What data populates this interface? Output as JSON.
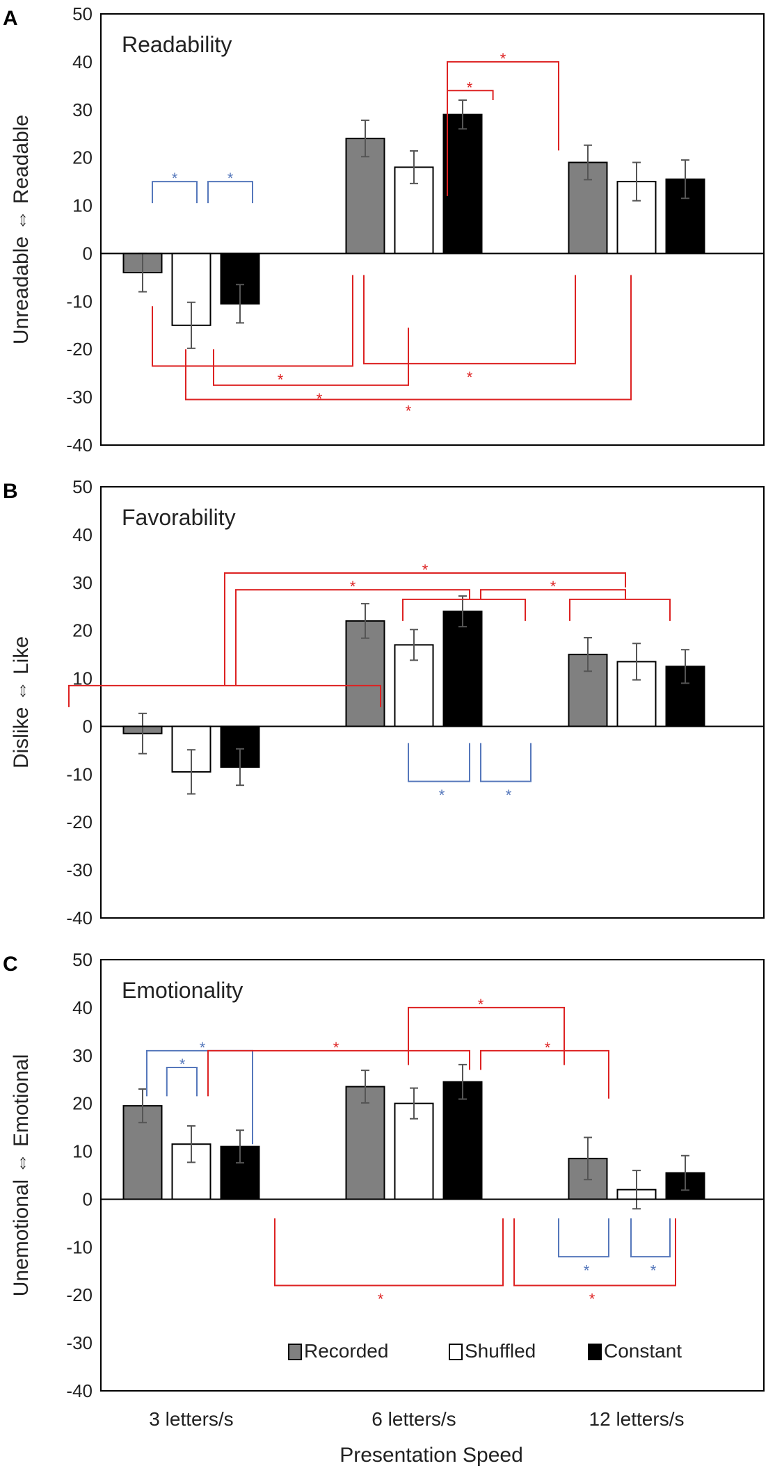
{
  "chart_data": [
    {
      "panel_label": "A",
      "type": "bar",
      "title": "Readability",
      "ylabel": "Unreadable ⇔ Readable",
      "ylim": [
        -40,
        50
      ],
      "yticks": [
        "50",
        "40",
        "30",
        "20",
        "10",
        "0",
        "-10",
        "-20",
        "-30",
        "-40"
      ],
      "categories": [
        "3 letters/s",
        "6 letters/s",
        "12 letters/s"
      ],
      "series": [
        {
          "name": "Recorded",
          "values": [
            -4,
            24,
            19
          ],
          "errors": [
            4,
            3.8,
            3.6
          ],
          "color": "#808080"
        },
        {
          "name": "Shuffled",
          "values": [
            -15,
            18,
            15
          ],
          "errors": [
            4.8,
            3.4,
            4
          ],
          "color": "#ffffff"
        },
        {
          "name": "Constant",
          "values": [
            -10.5,
            29,
            15.5
          ],
          "errors": [
            4,
            3,
            4
          ],
          "color": "#000000"
        }
      ],
      "significance_marker": "*"
    },
    {
      "panel_label": "B",
      "type": "bar",
      "title": "Favorability",
      "ylabel": "Dislike ⇔ Like",
      "ylim": [
        -40,
        50
      ],
      "yticks": [
        "50",
        "40",
        "30",
        "20",
        "10",
        "0",
        "-10",
        "-20",
        "-30",
        "-40"
      ],
      "categories": [
        "3 letters/s",
        "6 letters/s",
        "12 letters/s"
      ],
      "series": [
        {
          "name": "Recorded",
          "values": [
            -1.5,
            22,
            15
          ],
          "errors": [
            4.2,
            3.6,
            3.5
          ],
          "color": "#808080"
        },
        {
          "name": "Shuffled",
          "values": [
            -9.5,
            17,
            13.5
          ],
          "errors": [
            4.6,
            3.2,
            3.8
          ],
          "color": "#ffffff"
        },
        {
          "name": "Constant",
          "values": [
            -8.5,
            24,
            12.5
          ],
          "errors": [
            3.8,
            3.2,
            3.5
          ],
          "color": "#000000"
        }
      ],
      "significance_marker": "*"
    },
    {
      "panel_label": "C",
      "type": "bar",
      "title": "Emotionality",
      "ylabel": "Unemotional ⇔ Emotional",
      "ylim": [
        -40,
        50
      ],
      "yticks": [
        "50",
        "40",
        "30",
        "20",
        "10",
        "0",
        "-10",
        "-20",
        "-30",
        "-40"
      ],
      "categories": [
        "3 letters/s",
        "6 letters/s",
        "12 letters/s"
      ],
      "series": [
        {
          "name": "Recorded",
          "values": [
            19.5,
            23.5,
            8.5
          ],
          "errors": [
            3.5,
            3.4,
            4.4
          ],
          "color": "#808080"
        },
        {
          "name": "Shuffled",
          "values": [
            11.5,
            20,
            2
          ],
          "errors": [
            3.8,
            3.2,
            4
          ],
          "color": "#ffffff"
        },
        {
          "name": "Constant",
          "values": [
            11,
            24.5,
            5.5
          ],
          "errors": [
            3.4,
            3.6,
            3.6
          ],
          "color": "#000000"
        }
      ],
      "significance_marker": "*",
      "legend": {
        "position": "bottom-right",
        "items": [
          "Recorded",
          "Shuffled",
          "Constant"
        ]
      }
    }
  ],
  "xlabel": "Presentation Speed",
  "colors": {
    "red_bracket": "#dd2222",
    "blue_bracket": "#5577bb",
    "error_bar": "#555555"
  }
}
